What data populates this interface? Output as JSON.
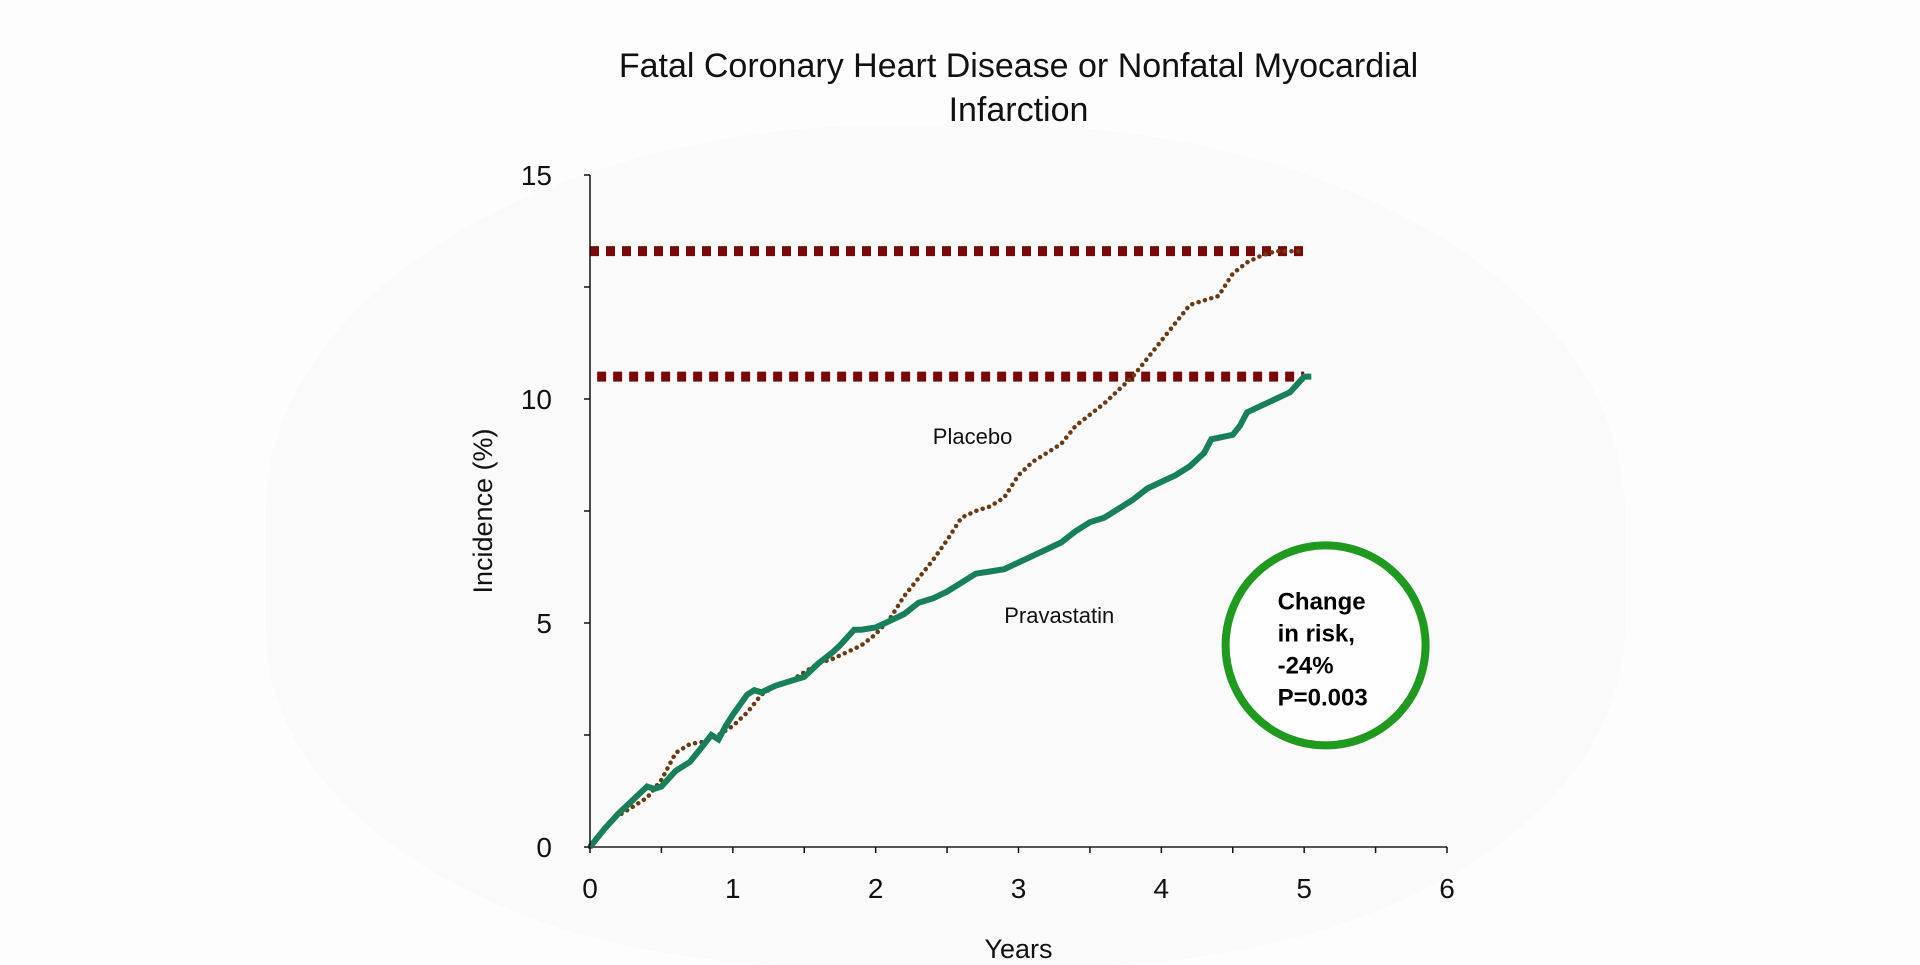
{
  "chart_data": {
    "type": "line",
    "title_lines": [
      "Fatal Coronary Heart Disease or Nonfatal Myocardial",
      "Infarction"
    ],
    "xlabel": "Years",
    "ylabel": "Incidence (%)",
    "xlim": [
      0,
      6
    ],
    "ylim": [
      0,
      15
    ],
    "x_ticks": [
      0,
      1,
      2,
      3,
      4,
      5,
      6
    ],
    "x_tick_labels": [
      "0",
      "1",
      "2",
      "3",
      "4",
      "5",
      "6"
    ],
    "x_minor_step": 0.5,
    "y_ticks": [
      0,
      5,
      10,
      15
    ],
    "y_tick_labels": [
      "0",
      "5",
      "10",
      "15"
    ],
    "y_minor_step": 2.5,
    "grid": false,
    "series": [
      {
        "name": "Placebo",
        "label": "Placebo",
        "style": "dotted",
        "color": "#6b3a12",
        "x": [
          0,
          0.15,
          0.3,
          0.4,
          0.5,
          0.6,
          0.7,
          0.8,
          0.9,
          1.0,
          1.1,
          1.2,
          1.3,
          1.4,
          1.5,
          1.6,
          1.7,
          1.8,
          1.9,
          2.0,
          2.1,
          2.2,
          2.3,
          2.4,
          2.5,
          2.6,
          2.7,
          2.8,
          2.9,
          3.0,
          3.1,
          3.2,
          3.3,
          3.4,
          3.5,
          3.6,
          3.7,
          3.8,
          3.9,
          4.0,
          4.1,
          4.2,
          4.3,
          4.4,
          4.5,
          4.6,
          4.7,
          4.8,
          4.9,
          5.0
        ],
        "y": [
          0,
          0.6,
          0.9,
          1.1,
          1.5,
          2.1,
          2.3,
          2.35,
          2.5,
          2.7,
          3.0,
          3.4,
          3.6,
          3.7,
          3.9,
          4.1,
          4.2,
          4.35,
          4.5,
          4.75,
          5.1,
          5.6,
          6.0,
          6.4,
          6.85,
          7.35,
          7.5,
          7.6,
          7.8,
          8.3,
          8.6,
          8.8,
          9.0,
          9.4,
          9.65,
          9.9,
          10.2,
          10.5,
          10.9,
          11.3,
          11.7,
          12.1,
          12.2,
          12.3,
          12.8,
          13.05,
          13.2,
          13.3,
          13.3,
          13.3
        ]
      },
      {
        "name": "Pravastatin",
        "label": "Pravastatin",
        "style": "solid",
        "color": "#17805a",
        "x": [
          0,
          0.1,
          0.2,
          0.3,
          0.4,
          0.45,
          0.5,
          0.6,
          0.7,
          0.8,
          0.85,
          0.9,
          0.95,
          1.0,
          1.1,
          1.15,
          1.2,
          1.3,
          1.4,
          1.5,
          1.6,
          1.7,
          1.75,
          1.85,
          1.9,
          2.0,
          2.1,
          2.2,
          2.3,
          2.4,
          2.5,
          2.6,
          2.7,
          2.8,
          2.9,
          3.0,
          3.1,
          3.2,
          3.3,
          3.4,
          3.5,
          3.6,
          3.7,
          3.8,
          3.9,
          4.0,
          4.1,
          4.2,
          4.3,
          4.35,
          4.5,
          4.55,
          4.6,
          4.7,
          4.8,
          4.9,
          5.0,
          5.05
        ],
        "y": [
          0,
          0.4,
          0.75,
          1.05,
          1.35,
          1.3,
          1.35,
          1.7,
          1.9,
          2.3,
          2.5,
          2.4,
          2.7,
          2.95,
          3.4,
          3.5,
          3.45,
          3.6,
          3.7,
          3.8,
          4.1,
          4.35,
          4.5,
          4.85,
          4.85,
          4.9,
          5.05,
          5.2,
          5.45,
          5.55,
          5.7,
          5.9,
          6.1,
          6.15,
          6.2,
          6.35,
          6.5,
          6.65,
          6.8,
          7.05,
          7.25,
          7.35,
          7.55,
          7.75,
          8.0,
          8.15,
          8.3,
          8.5,
          8.8,
          9.1,
          9.2,
          9.4,
          9.7,
          9.85,
          10.0,
          10.15,
          10.5,
          10.5
        ]
      }
    ],
    "reference_lines": [
      {
        "name": "placebo-endpoint",
        "y": 13.3,
        "x_range": [
          0,
          5
        ],
        "style": "dotted",
        "color": "#7a0a0a"
      },
      {
        "name": "pravastatin-endpoint",
        "y": 10.5,
        "x_range": [
          0.05,
          5
        ],
        "style": "dotted",
        "color": "#7a0a0a"
      }
    ],
    "series_label_positions": {
      "Placebo": {
        "x": 2.4,
        "y": 9.0
      },
      "Pravastatin": {
        "x": 2.9,
        "y": 5.0
      }
    },
    "annotation": {
      "lines": [
        "Change",
        "in risk,",
        "-24%",
        "P=0.003"
      ],
      "shape": "circle",
      "border_color": "#1f9a1f",
      "center": {
        "x": 5.15,
        "y": 4.5
      }
    }
  }
}
